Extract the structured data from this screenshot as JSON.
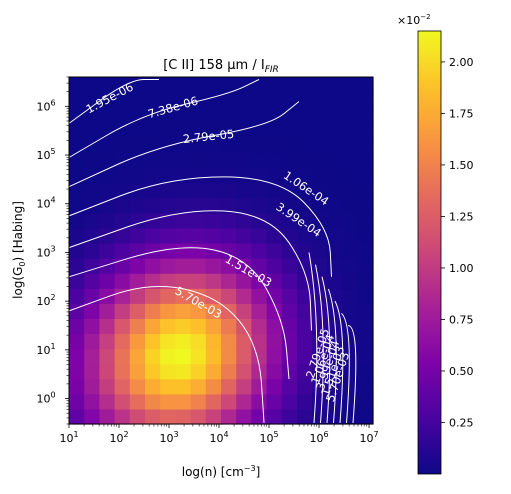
{
  "chart_data": {
    "type": "heatmap",
    "title": "[C II] 158 μm / I",
    "title_subscript": "FIR",
    "xlabel": "log(n) [cm",
    "xlabel_sup": "−3",
    "xlabel_end": "]",
    "ylabel": "log(G",
    "ylabel_sub": "0",
    "ylabel_end": ") [Habing]",
    "x_scale": "log",
    "y_scale": "log",
    "xlim": [
      10,
      12000000
    ],
    "ylim": [
      0.3,
      4000000
    ],
    "x_tick_exponents": [
      1,
      2,
      3,
      4,
      5,
      6,
      7
    ],
    "y_tick_exponents": [
      0,
      1,
      2,
      3,
      4,
      5,
      6
    ],
    "colormap": "plasma",
    "color_range": [
      0.0,
      2.15
    ],
    "colorbar_ticks": [
      "0.25",
      "0.50",
      "0.75",
      "1.00",
      "1.25",
      "1.50",
      "1.75",
      "2.00"
    ],
    "colorbar_multiplier": "×10",
    "colorbar_multiplier_exp": "−2",
    "peak": {
      "log_n": 3.2,
      "log_G0": 0.9,
      "value": 2.15
    },
    "contour_color": "#ffffff",
    "contour_labels": [
      "1.95e-06",
      "7.38e-06",
      "2.79e-05",
      "1.06e-04",
      "3.99e-04",
      "1.51e-03",
      "5.70e-03",
      "2.79e-05",
      "1.06e-04",
      "3.99e-04",
      "1.51e-03",
      "5.70e-03"
    ],
    "grid": false,
    "legend": "none"
  }
}
